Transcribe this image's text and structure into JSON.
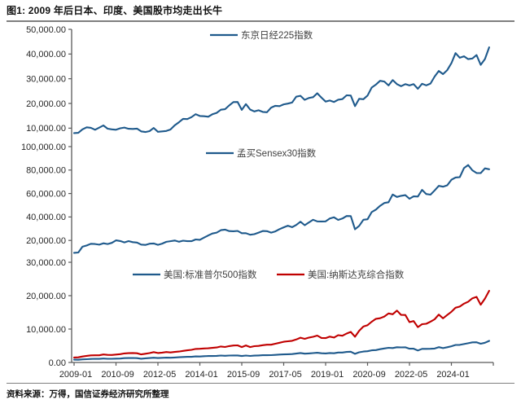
{
  "header": {
    "title": "图1: 2009 年后日本、印度、美国股市均走出长牛"
  },
  "footer": {
    "source": "资料来源：万得，国信证券经济研究所整理"
  },
  "colors": {
    "blue": "#1f5a8c",
    "red": "#c00000",
    "axis": "#595959",
    "tick_text": "#262626",
    "legend_text": "#404040"
  },
  "x_axis": {
    "tick_labels": [
      "2009-01",
      "2010-09",
      "2012-05",
      "2014-01",
      "2015-09",
      "2017-05",
      "2019-01",
      "2020-09",
      "2022-05",
      "2024-01"
    ],
    "tick_months": [
      0,
      20,
      40,
      60,
      80,
      100,
      120,
      140,
      160,
      180
    ],
    "axis_end_month": 200
  },
  "chart_data": [
    {
      "type": "line",
      "title": "东京日经225指数",
      "ylim": [
        5500,
        50000
      ],
      "grid": false,
      "legend_position": "top-center",
      "yticks": [
        {
          "v": 50000,
          "label": "50,000.00"
        },
        {
          "v": 40000,
          "label": "40,000.00"
        },
        {
          "v": 30000,
          "label": "30,000.00"
        },
        {
          "v": 20000,
          "label": "20,000.00"
        },
        {
          "v": 10000,
          "label": "10,000.00"
        }
      ],
      "series": [
        {
          "name": "东京日经225指数",
          "color_key": "blue",
          "x_start_month": 0,
          "x_step_months": 2,
          "values": [
            7994,
            8110,
            9523,
            10357,
            10133,
            9346,
            10198,
            11090,
            9769,
            9537,
            9369,
            9937,
            10237,
            9755,
            9694,
            9833,
            8700,
            8435,
            8803,
            10084,
            8543,
            8695,
            8870,
            9446,
            11139,
            12398,
            13775,
            13668,
            14456,
            15662,
            14914,
            14828,
            14632,
            15621,
            16174,
            17460,
            17674,
            19207,
            20563,
            20585,
            17388,
            19747,
            17518,
            16759,
            17235,
            16569,
            16450,
            18308,
            19041,
            18909,
            19651,
            19925,
            20356,
            22725,
            23098,
            21454,
            22202,
            22554,
            24120,
            22351,
            20773,
            21206,
            20601,
            21522,
            21756,
            23294,
            23205,
            18917,
            21878,
            21710,
            23185,
            26434,
            27663,
            29179,
            28860,
            27284,
            29453,
            27822,
            27002,
            27821,
            27280,
            27802,
            25937,
            27969,
            27327,
            28041,
            30888,
            33172,
            31858,
            33487,
            36287,
            40369,
            38488,
            39102,
            37920,
            38208,
            39572,
            35618,
            37965,
            42718
          ]
        }
      ]
    },
    {
      "type": "line",
      "title": "孟买Sensex30指数",
      "ylim": [
        9000,
        100000
      ],
      "grid": false,
      "legend_position": "top-center",
      "yticks": [
        {
          "v": 100000,
          "label": "100,000.00"
        },
        {
          "v": 80000,
          "label": "80,000.00"
        },
        {
          "v": 60000,
          "label": "60,000.00"
        },
        {
          "v": 40000,
          "label": "40,000.00"
        },
        {
          "v": 20000,
          "label": "20,000.00"
        }
      ],
      "series": [
        {
          "name": "孟买Sensex30指数",
          "color_key": "blue",
          "x_start_month": 0,
          "x_step_months": 2,
          "values": [
            9424,
            9709,
            14625,
            15670,
            17127,
            16926,
            16358,
            17528,
            16945,
            17868,
            20069,
            19521,
            18328,
            19445,
            18503,
            18197,
            16454,
            16123,
            17194,
            17404,
            16219,
            17236,
            18763,
            19340,
            19895,
            18836,
            19760,
            19346,
            19380,
            20792,
            20514,
            22386,
            24217,
            25895,
            26631,
            28694,
            29183,
            27957,
            27828,
            28115,
            26155,
            26146,
            24871,
            25342,
            26668,
            28052,
            27866,
            26653,
            27656,
            29621,
            31146,
            32515,
            31284,
            33149,
            35965,
            32969,
            35322,
            37607,
            36227,
            36194,
            36257,
            38673,
            39714,
            37481,
            38667,
            40794,
            40723,
            29468,
            32424,
            37607,
            38068,
            44150,
            46286,
            49509,
            51937,
            52587,
            59126,
            57065,
            58014,
            58569,
            55566,
            57570,
            57427,
            63100,
            59550,
            58992,
            62622,
            66527,
            65828,
            66988,
            71752,
            73651,
            73961,
            81741,
            84300,
            79803,
            77501,
            77415,
            81451,
            80710
          ]
        }
      ]
    },
    {
      "type": "line",
      "title": "美国股指",
      "ylim": [
        0,
        30000
      ],
      "grid": false,
      "legend_position": "top-center",
      "yticks": [
        {
          "v": 30000,
          "label": "30,000.00"
        },
        {
          "v": 20000,
          "label": "20,000.00"
        },
        {
          "v": 10000,
          "label": "10,000.00"
        },
        {
          "v": 0,
          "label": "0.00"
        }
      ],
      "series": [
        {
          "name": "美国:标准普尔500指数",
          "color_key": "blue",
          "x_start_month": 0,
          "x_step_months": 2,
          "values": [
            826,
            798,
            919,
            987,
            1057,
            1096,
            1074,
            1169,
            1089,
            1102,
            1141,
            1181,
            1286,
            1326,
            1345,
            1292,
            1131,
            1247,
            1312,
            1408,
            1310,
            1379,
            1441,
            1416,
            1498,
            1569,
            1631,
            1686,
            1682,
            1806,
            1783,
            1872,
            1924,
            1931,
            1972,
            2068,
            1995,
            2068,
            2107,
            2104,
            1920,
            2080,
            1940,
            2060,
            2097,
            2174,
            2168,
            2199,
            2279,
            2363,
            2412,
            2470,
            2519,
            2648,
            2824,
            2641,
            2705,
            2816,
            2914,
            2760,
            2704,
            2834,
            2752,
            2980,
            2977,
            3141,
            3226,
            2585,
            3044,
            3271,
            3363,
            3622,
            3714,
            3973,
            4204,
            4395,
            4308,
            4567,
            4516,
            4530,
            4132,
            4130,
            3586,
            4080,
            4077,
            4109,
            4180,
            4589,
            4288,
            4568,
            4846,
            5254,
            5278,
            5522,
            5762,
            6032,
            6041,
            5612,
            5912,
            6460
          ]
        },
        {
          "name": "美国:纳斯达克综合指数",
          "color_key": "red",
          "x_start_month": 0,
          "x_step_months": 2,
          "values": [
            1476,
            1529,
            1774,
            1979,
            2122,
            2145,
            2147,
            2398,
            2257,
            2255,
            2369,
            2498,
            2700,
            2781,
            2835,
            2756,
            2415,
            2620,
            2814,
            3092,
            2827,
            2940,
            3116,
            3010,
            3142,
            3268,
            3456,
            3626,
            3771,
            4060,
            4104,
            4199,
            4243,
            4370,
            4493,
            4792,
            4635,
            4901,
            5070,
            5128,
            4620,
            5109,
            4614,
            4870,
            4948,
            5162,
            5312,
            5324,
            5615,
            5912,
            6199,
            6348,
            6496,
            6874,
            7411,
            7063,
            7442,
            7672,
            8046,
            7331,
            7282,
            7729,
            7453,
            8175,
            7999,
            8665,
            9151,
            7700,
            9490,
            10745,
            11168,
            12199,
            13071,
            13247,
            13749,
            14673,
            14449,
            15538,
            14240,
            14221,
            12081,
            12391,
            10576,
            11468,
            11585,
            12222,
            12935,
            14346,
            13219,
            14226,
            15164,
            16379,
            16735,
            17599,
            18189,
            19218,
            19627,
            17299,
            19114,
            21455
          ]
        }
      ]
    }
  ]
}
